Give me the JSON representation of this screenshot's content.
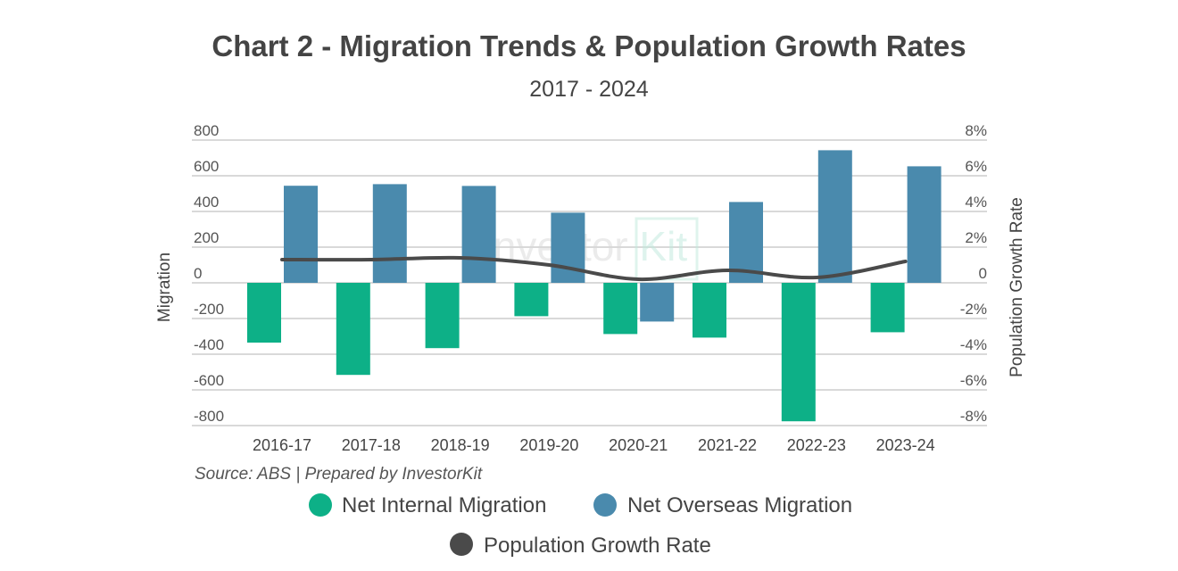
{
  "chart_data": {
    "type": "bar",
    "title": "Chart 2 - Migration Trends & Population Growth Rates",
    "subtitle": "2017 - 2024",
    "categories": [
      "2016-17",
      "2017-18",
      "2018-19",
      "2019-20",
      "2020-21",
      "2021-22",
      "2022-23",
      "2023-24"
    ],
    "series": [
      {
        "name": "Net Internal Migration",
        "type": "bar",
        "axis": "left",
        "color": "#0db087",
        "values": [
          -335,
          -516,
          -366,
          -187,
          -287,
          -307,
          -776,
          -277
        ]
      },
      {
        "name": "Net Overseas Migration",
        "type": "bar",
        "axis": "left",
        "color": "#4a8aad",
        "values": [
          544,
          553,
          543,
          393,
          -217,
          453,
          743,
          653
        ]
      },
      {
        "name": "Population Growth Rate",
        "type": "line",
        "axis": "right",
        "color": "#4a4a4a",
        "values": [
          1.3,
          1.3,
          1.4,
          1.0,
          0.2,
          0.7,
          0.3,
          1.2
        ]
      }
    ],
    "ylabel": "Migration",
    "ylim": [
      -800,
      800
    ],
    "yticks": [
      "800",
      "600",
      "400",
      "200",
      "0",
      "-200",
      "-400",
      "-600",
      "-800"
    ],
    "y2label": "Population Growth Rate",
    "y2lim": [
      -8,
      8
    ],
    "y2ticks": [
      "8%",
      "6%",
      "4%",
      "2%",
      "0",
      "-2%",
      "-4%",
      "-6%",
      "-8%"
    ],
    "grid": true,
    "legend_position": "bottom",
    "source": "Source: ABS | Prepared by InvestorKit",
    "watermark": "Investor Kit"
  }
}
